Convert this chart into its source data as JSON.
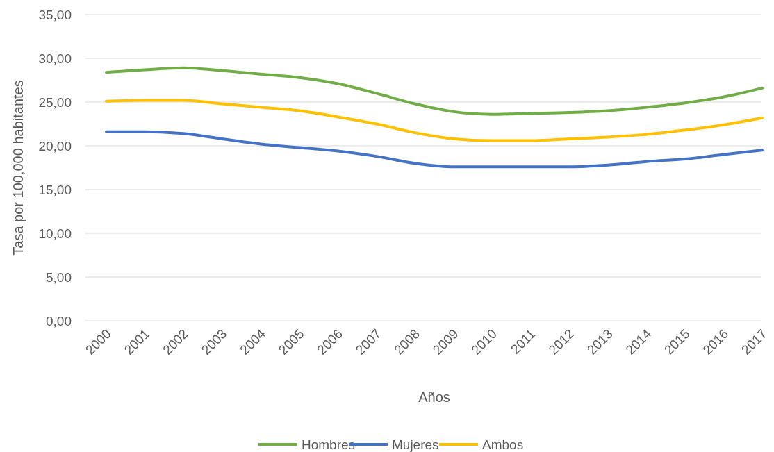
{
  "chart_data": {
    "type": "line",
    "xlabel": "Años",
    "ylabel": "Tasa por 100,000 habitantes",
    "categories": [
      "2000",
      "2001",
      "2002",
      "2003",
      "2004",
      "2005",
      "2006",
      "2007",
      "2008",
      "2009",
      "2010",
      "2011",
      "2012",
      "2013",
      "2014",
      "2015",
      "2016",
      "2017"
    ],
    "series": [
      {
        "name": "Hombres",
        "color": "#70ad47",
        "values": [
          28.4,
          28.7,
          28.9,
          28.6,
          28.2,
          27.8,
          27.1,
          26.0,
          24.8,
          23.9,
          23.6,
          23.7,
          23.8,
          24.0,
          24.4,
          24.9,
          25.6,
          26.6
        ]
      },
      {
        "name": "Mujeres",
        "color": "#4472c4",
        "values": [
          21.6,
          21.6,
          21.4,
          20.8,
          20.2,
          19.8,
          19.4,
          18.8,
          18.0,
          17.6,
          17.6,
          17.6,
          17.6,
          17.8,
          18.2,
          18.5,
          19.0,
          19.5
        ]
      },
      {
        "name": "Ambos",
        "color": "#ffc000",
        "values": [
          25.1,
          25.2,
          25.2,
          24.8,
          24.4,
          24.0,
          23.3,
          22.5,
          21.5,
          20.8,
          20.6,
          20.6,
          20.8,
          21.0,
          21.3,
          21.8,
          22.4,
          23.2
        ]
      }
    ],
    "ylim": [
      0,
      35
    ],
    "yticks": [
      {
        "value": 0,
        "label": "0,00"
      },
      {
        "value": 5,
        "label": "5,00"
      },
      {
        "value": 10,
        "label": "10,00"
      },
      {
        "value": 15,
        "label": "15,00"
      },
      {
        "value": 20,
        "label": "20,00"
      },
      {
        "value": 25,
        "label": "25,00"
      },
      {
        "value": 30,
        "label": "30,00"
      },
      {
        "value": 35,
        "label": "35,00"
      }
    ],
    "grid": "y",
    "legend": "bottom",
    "marker": "none",
    "line_style": "solid"
  }
}
